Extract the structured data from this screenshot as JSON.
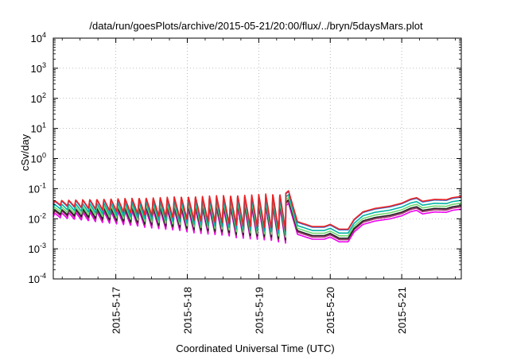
{
  "chart_data": {
    "type": "line",
    "title": "/data/run/goesPlots/archive/2015-05-21/20:00/flux/../bryn/5daysMars.plot",
    "xlabel": "Coordinated Universal Time (UTC)",
    "ylabel": "cSv/day",
    "yscale": "log",
    "ylim": [
      0.0001,
      10000
    ],
    "xlim": [
      "2015-05-16 03:00",
      "2015-05-21 20:00"
    ],
    "grid": true,
    "x_ticks": [
      "2015-5-17",
      "2015-5-18",
      "2015-5-19",
      "2015-5-20",
      "2015-5-21"
    ],
    "y_ticks": [
      {
        "base": "10",
        "exp": "-4",
        "value": 0.0001
      },
      {
        "base": "10",
        "exp": "-3",
        "value": 0.001
      },
      {
        "base": "10",
        "exp": "-2",
        "value": 0.01
      },
      {
        "base": "10",
        "exp": "-1",
        "value": 0.1
      },
      {
        "base": "10",
        "exp": "0",
        "value": 1
      },
      {
        "base": "10",
        "exp": "1",
        "value": 10
      },
      {
        "base": "10",
        "exp": "2",
        "value": 100
      },
      {
        "base": "10",
        "exp": "3",
        "value": 1000
      },
      {
        "base": "10",
        "exp": "4",
        "value": 10000
      }
    ],
    "series": [
      {
        "color": "#ee2222",
        "scale": 1.0
      },
      {
        "color": "#2a6fd8",
        "scale": 0.95
      },
      {
        "color": "#00b3a6",
        "scale": 0.74
      },
      {
        "color": "#6fd86f",
        "scale": 0.6
      },
      {
        "color": "#222222",
        "scale": 0.5
      },
      {
        "color": "#a0306a",
        "scale": 0.45
      },
      {
        "color": "#ee00ee",
        "scale": 0.38
      }
    ],
    "envelope": [
      [
        "2015-05-16 03:00",
        0.04,
        0.03
      ],
      [
        "2015-05-19 09:00",
        0.07,
        0.004
      ],
      [
        "2015-05-19 10:00",
        0.085,
        0.006
      ],
      [
        "2015-05-19 13:00",
        0.008,
        0.008
      ],
      [
        "2015-05-19 18:00",
        0.0055,
        0.0055
      ],
      [
        "2015-05-19 22:00",
        0.0055,
        0.0055
      ],
      [
        "2015-05-20 00:00",
        0.0065,
        0.0065
      ],
      [
        "2015-05-20 03:00",
        0.0045,
        0.0045
      ],
      [
        "2015-05-20 06:00",
        0.0045,
        0.0045
      ],
      [
        "2015-05-20 08:00",
        0.0095,
        0.0095
      ],
      [
        "2015-05-20 11:00",
        0.017,
        0.017
      ],
      [
        "2015-05-20 15:00",
        0.022,
        0.022
      ],
      [
        "2015-05-20 20:00",
        0.026,
        0.026
      ],
      [
        "2015-05-21 00:00",
        0.033,
        0.033
      ],
      [
        "2015-05-21 03:00",
        0.045,
        0.045
      ],
      [
        "2015-05-21 05:00",
        0.05,
        0.05
      ],
      [
        "2015-05-21 07:00",
        0.038,
        0.038
      ],
      [
        "2015-05-21 11:00",
        0.044,
        0.044
      ],
      [
        "2015-05-21 15:00",
        0.043,
        0.043
      ],
      [
        "2015-05-21 17:00",
        0.05,
        0.05
      ],
      [
        "2015-05-21 20:00",
        0.055,
        0.055
      ]
    ],
    "oscillation": {
      "start": "2015-05-16 03:00",
      "end": "2015-05-19 09:00",
      "cycles": 33
    }
  }
}
